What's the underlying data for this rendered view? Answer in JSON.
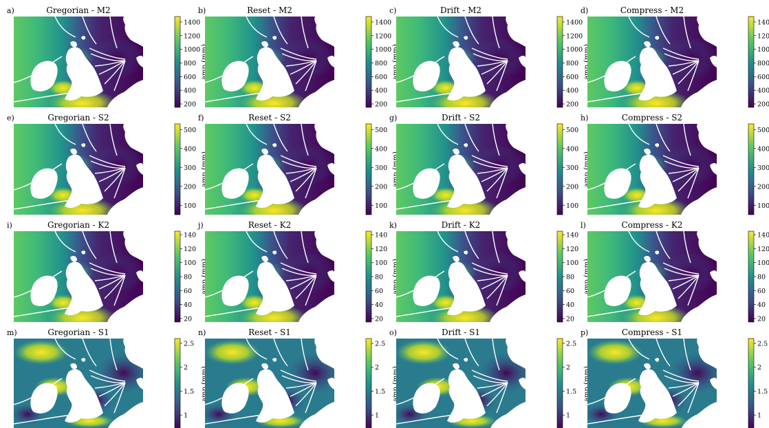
{
  "chart_data": {
    "type": "heatmap",
    "colormap": "viridis",
    "contour_color": "#ffffff",
    "land_color": "#ffffff",
    "rows": [
      {
        "constituent": "M2",
        "cbar_label": "amp (mm)",
        "ticks": [
          200,
          400,
          600,
          800,
          1000,
          1200,
          1400
        ],
        "range": [
          150,
          1480
        ]
      },
      {
        "constituent": "S2",
        "cbar_label": "amp (mm)",
        "ticks": [
          100,
          200,
          300,
          400,
          500
        ],
        "range": [
          50,
          530
        ]
      },
      {
        "constituent": "K2",
        "cbar_label": "amp (mm)",
        "ticks": [
          20,
          40,
          60,
          80,
          100,
          120,
          140
        ],
        "range": [
          15,
          145
        ]
      },
      {
        "constituent": "S1",
        "cbar_label": "amp (mm)",
        "ticks": [
          1.0,
          1.5,
          2.0,
          2.5
        ],
        "range": [
          0.7,
          2.6
        ]
      }
    ],
    "panels": [
      {
        "letter": "a)",
        "title": "Gregorian - M2"
      },
      {
        "letter": "b)",
        "title": "Reset - M2"
      },
      {
        "letter": "c)",
        "title": "Drift - M2"
      },
      {
        "letter": "d)",
        "title": "Compress - M2"
      },
      {
        "letter": "e)",
        "title": "Gregorian - S2"
      },
      {
        "letter": "f)",
        "title": "Reset - S2"
      },
      {
        "letter": "g)",
        "title": "Drift - S2"
      },
      {
        "letter": "h)",
        "title": "Compress - S2"
      },
      {
        "letter": "i)",
        "title": "Gregorian - K2"
      },
      {
        "letter": "j)",
        "title": "Reset - K2"
      },
      {
        "letter": "k)",
        "title": "Drift - K2"
      },
      {
        "letter": "l)",
        "title": "Compress - K2"
      },
      {
        "letter": "m)",
        "title": "Gregorian - S1"
      },
      {
        "letter": "n)",
        "title": "Reset - S1"
      },
      {
        "letter": "o)",
        "title": "Drift - S1"
      },
      {
        "letter": "p)",
        "title": "Compress - S1"
      }
    ]
  }
}
